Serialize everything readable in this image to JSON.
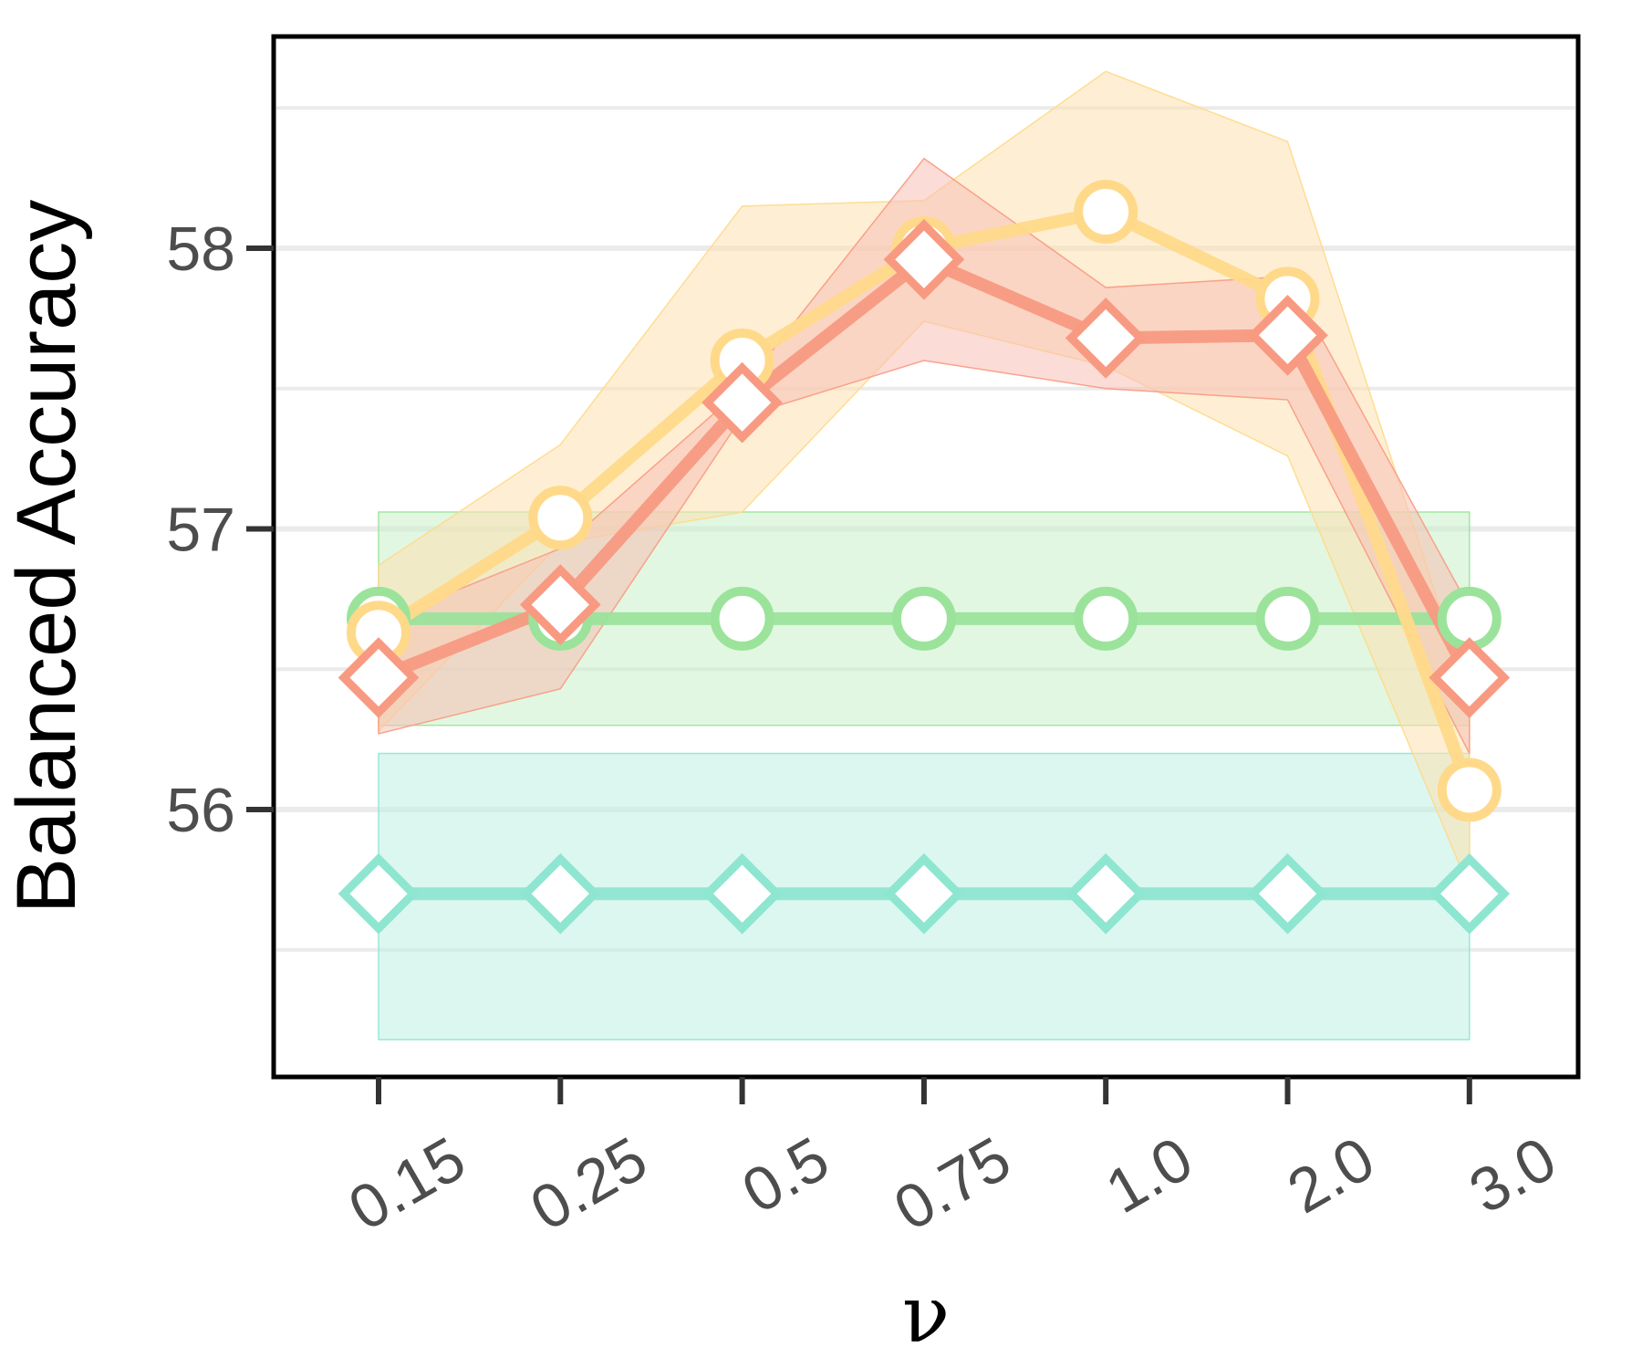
{
  "chart_data": {
    "type": "line",
    "xlabel": "ν",
    "ylabel": "Balanced Accuracy",
    "categories": [
      "0.15",
      "0.25",
      "0.5",
      "0.75",
      "1.0",
      "2.0",
      "3.0"
    ],
    "yticks": [
      "56",
      "57",
      "58"
    ],
    "ylim": [
      55.1,
      58.8
    ],
    "grid": "horizontal",
    "legend": "none",
    "series": [
      {
        "marker": "circle",
        "color": "#9be39b",
        "band_color": "#c8f0c8",
        "values": [
          56.68,
          56.68,
          56.68,
          56.68,
          56.68,
          56.68,
          56.68
        ],
        "lower": [
          56.3,
          56.3,
          56.3,
          56.3,
          56.3,
          56.3,
          56.3
        ],
        "upper": [
          57.06,
          57.06,
          57.06,
          57.06,
          57.06,
          57.06,
          57.06
        ]
      },
      {
        "marker": "diamond",
        "color": "#8ee6d0",
        "band_color": "#bff0e4",
        "values": [
          55.7,
          55.7,
          55.7,
          55.7,
          55.7,
          55.7,
          55.7
        ],
        "lower": [
          55.18,
          55.18,
          55.18,
          55.18,
          55.18,
          55.18,
          55.18
        ],
        "upper": [
          56.2,
          56.2,
          56.2,
          56.2,
          56.2,
          56.2,
          56.2
        ]
      },
      {
        "marker": "circle",
        "color": "#ffd98a",
        "band_color": "#fde2b0",
        "values": [
          56.63,
          57.04,
          57.6,
          58.0,
          58.13,
          57.82,
          56.07
        ],
        "lower": [
          56.28,
          56.95,
          57.06,
          57.74,
          57.58,
          57.26,
          55.72
        ],
        "upper": [
          56.87,
          57.3,
          58.15,
          58.17,
          58.63,
          58.38,
          56.4
        ]
      },
      {
        "marker": "diamond",
        "color": "#f89a82",
        "band_color": "#f8c0b4",
        "values": [
          56.47,
          56.73,
          57.45,
          57.96,
          57.68,
          57.69,
          56.47
        ],
        "lower": [
          56.27,
          56.43,
          57.4,
          57.6,
          57.5,
          57.46,
          56.2
        ],
        "upper": [
          56.67,
          56.93,
          57.5,
          58.32,
          57.86,
          57.9,
          56.72
        ]
      }
    ]
  }
}
